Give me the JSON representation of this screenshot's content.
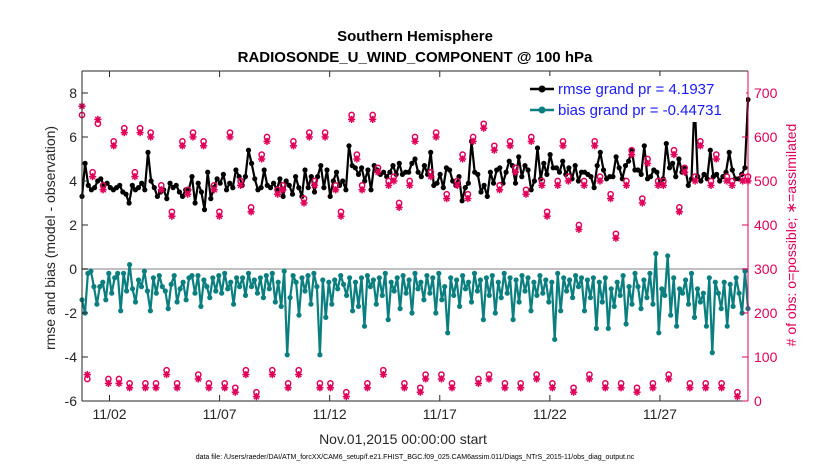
{
  "chart_data": {
    "type": "line",
    "title": "Southern Hemisphere",
    "subtitle": "RADIOSONDE_U_WIND_COMPONENT @ 100 hPa",
    "xlabel": "Nov.01,2015 00:00:00 start",
    "ylabel": "rmse and bias (model - observation)",
    "y2label": "# of obs: o=possible; ∗=assimilated",
    "footnote": "data file: /Users/raeder/DAI/ATM_forcXX/CAM6_setup/f.e21.FHIST_BGC.f09_025.CAM6assim.011/Diags_NTrS_2015-11/obs_diag_output.nc",
    "x_tick_labels": [
      "11/02",
      "11/07",
      "11/12",
      "11/17",
      "11/22",
      "11/27"
    ],
    "x_tick_days": [
      2,
      7,
      12,
      17,
      22,
      27
    ],
    "x_range": [
      0.75,
      31.0
    ],
    "ylim": [
      -6,
      9
    ],
    "y_ticks": [
      -6,
      -4,
      -2,
      0,
      2,
      4,
      6,
      8
    ],
    "y2lim": [
      0,
      750
    ],
    "y2_ticks": [
      0,
      100,
      200,
      300,
      400,
      500,
      600,
      700
    ],
    "zero_line": 0,
    "colors": {
      "rmse": "#000000",
      "bias": "#0b7f7f",
      "obs": "#e0005a",
      "zero": "#c0c0c0",
      "legend_text": "#1a1aff"
    },
    "series": [
      {
        "name": "rmse grand pr = 4.1937",
        "axis": "left",
        "marker": "dot",
        "values": [
          3.3,
          4.8,
          3.8,
          3.6,
          3.7,
          4.0,
          4.1,
          3.8,
          3.9,
          3.7,
          3.6,
          3.7,
          3.8,
          3.5,
          3.4,
          3.0,
          3.8,
          3.6,
          3.7,
          3.9,
          3.6,
          5.3,
          4.0,
          3.7,
          3.3,
          3.5,
          3.6,
          3.2,
          3.9,
          3.7,
          3.8,
          3.5,
          3.3,
          3.6,
          3.6,
          4.2,
          3.0,
          3.9,
          3.5,
          2.7,
          4.4,
          3.2,
          3.7,
          4.1,
          3.9,
          4.3,
          3.6,
          3.9,
          3.7,
          4.5,
          4.2,
          3.8,
          4.2,
          5.4,
          4.8,
          4.1,
          3.6,
          3.7,
          4.5,
          3.8,
          3.7,
          3.9,
          3.6,
          4.1,
          3.3,
          4.0,
          3.8,
          3.4,
          4.2,
          3.7,
          3.3,
          4.5,
          3.7,
          4.2,
          3.5,
          4.2,
          4.7,
          3.7,
          4.5,
          3.3,
          4.0,
          4.4,
          3.8,
          4.0,
          3.6,
          5.6,
          4.7,
          4.6,
          4.3,
          4.6,
          4.0,
          4.5,
          3.6,
          4.7,
          4.5,
          4.3,
          4.4,
          4.2,
          4.4,
          4.7,
          4.3,
          4.8,
          4.3,
          4.4,
          4.4,
          4.8,
          5.0,
          4.4,
          4.2,
          4.7,
          4.3,
          5.3,
          3.8,
          3.9,
          4.3,
          3.7,
          4.6,
          4.5,
          4.0,
          3.8,
          4.2,
          3.1,
          3.7,
          3.9,
          5.8,
          4.4,
          4.3,
          3.5,
          3.8,
          3.3,
          4.4,
          3.9,
          4.5,
          4.6,
          3.9,
          4.4,
          4.9,
          4.7,
          3.9,
          5.1,
          4.2,
          4.7,
          4.5,
          3.6,
          4.0,
          5.5,
          4.1,
          4.8,
          4.3,
          5.2,
          4.6,
          4.6,
          4.4,
          4.9,
          4.3,
          4.6,
          4.1,
          4.7,
          4.0,
          4.4,
          4.4,
          4.3,
          4.2,
          3.7,
          4.7,
          5.3,
          4.5,
          4.1,
          4.2,
          4.2,
          5.1,
          4.6,
          4.1,
          4.7,
          4.9,
          5.4,
          4.5,
          4.5,
          4.3,
          5.6,
          4.1,
          4.2,
          4.5,
          4.4,
          3.9,
          4.1,
          5.7,
          4.6,
          4.8,
          4.2,
          5.0,
          4.4,
          4.6,
          3.8,
          4.1,
          7.7,
          4.2,
          4.0,
          4.3,
          4.1,
          5.4,
          4.2,
          4.3,
          4.0,
          4.2,
          4.4,
          5.3,
          4.5,
          4.1,
          4.1,
          4.3,
          4.6,
          7.7
        ]
      },
      {
        "name": "bias grand pr = -0.44731",
        "axis": "left",
        "marker": "dot",
        "values": [
          -1.4,
          -2.0,
          -0.2,
          -0.1,
          -0.8,
          -1.6,
          -0.8,
          -0.6,
          -1.4,
          -0.2,
          -1.1,
          -0.4,
          -0.2,
          -1.9,
          -0.2,
          -1.0,
          0.2,
          -0.9,
          -1.5,
          -0.5,
          -0.8,
          -0.1,
          -1.0,
          -1.9,
          -0.4,
          -1.1,
          -0.3,
          -0.8,
          -1.0,
          -1.8,
          -0.7,
          -0.3,
          -1.5,
          -0.9,
          -0.6,
          -1.4,
          -0.4,
          -0.3,
          -1.1,
          -0.3,
          -1.7,
          -0.5,
          -0.8,
          -1.3,
          -0.4,
          -1.0,
          -0.3,
          -1.1,
          -0.2,
          -0.9,
          -0.6,
          -1.6,
          -0.4,
          -0.8,
          -0.4,
          -1.2,
          -0.2,
          -0.8,
          -0.5,
          -1.1,
          -0.4,
          -1.3,
          -0.3,
          -0.9,
          -0.2,
          -1.5,
          -0.6,
          -1.7,
          -0.1,
          -3.9,
          -1.3,
          -0.3,
          -0.6,
          -2.1,
          -0.4,
          -1.0,
          -0.3,
          -1.6,
          -0.2,
          -0.8,
          -3.9,
          -0.5,
          -2.2,
          -0.6,
          -1.6,
          -0.5,
          -0.9,
          -0.3,
          -0.7,
          -1.2,
          -0.4,
          -1.9,
          -0.6,
          -1.7,
          -0.4,
          -2.6,
          -0.3,
          -0.8,
          -0.5,
          -1.6,
          -0.4,
          -1.2,
          -0.2,
          -2.3,
          -0.6,
          -1.0,
          -0.4,
          -1.8,
          -0.3,
          -1.1,
          -0.5,
          -2.0,
          -0.2,
          -0.9,
          -0.6,
          -1.4,
          -0.3,
          -1.1,
          -0.4,
          -2.0,
          -0.2,
          -1.4,
          -0.8,
          -2.9,
          -0.4,
          -1.2,
          -0.5,
          -1.7,
          -0.3,
          -0.9,
          -0.6,
          -1.5,
          -0.2,
          -1.0,
          -0.5,
          -2.3,
          -0.4,
          -1.2,
          -0.3,
          -2.0,
          -0.6,
          -1.3,
          -0.2,
          -1.1,
          -0.4,
          -2.3,
          -0.5,
          -1.5,
          -0.3,
          -1.0,
          -0.4,
          -1.9,
          -0.6,
          -1.2,
          -0.3,
          -1.1,
          -0.5,
          -1.5,
          -0.6,
          -3.2,
          -0.2,
          -1.9,
          -0.4,
          -1.0,
          -0.5,
          -1.3,
          -0.3,
          -0.8,
          -0.4,
          -1.9,
          -0.5,
          -1.3,
          -0.4,
          -2.7,
          -0.6,
          -1.5,
          -0.4,
          -2.7,
          -0.9,
          -1.7,
          -0.6,
          -1.2,
          -0.3,
          -2.5,
          -0.8,
          -1.6,
          -0.2,
          -0.8,
          -1.8,
          -0.5,
          -1.3,
          -0.2,
          -1.6,
          0.7,
          -2.9,
          -0.9,
          -1.2,
          0.6,
          -2.1,
          -0.4,
          -2.6,
          -0.9,
          -1.1,
          -0.5,
          -1.6,
          -0.2,
          -2.2,
          -0.9,
          -1.5,
          -1.1,
          -2.6,
          -0.4,
          -3.8,
          -0.6,
          -1.1,
          -1.8,
          -0.6,
          -2.6,
          -0.7,
          -1.7,
          -0.4,
          -1.1,
          -2.0,
          -0.1,
          -1.8
        ]
      }
    ],
    "obs_counts": {
      "axis": "right",
      "possible_marker": "o",
      "assimilated_marker": "*",
      "possible": [
        650,
        50,
        520,
        630,
        490,
        50,
        590,
        50,
        620,
        40,
        520,
        620,
        40,
        610,
        40,
        490,
        70,
        430,
        40,
        590,
        480,
        610,
        60,
        590,
        40,
        490,
        430,
        40,
        610,
        30,
        500,
        70,
        440,
        20,
        560,
        600,
        70,
        480,
        490,
        40,
        590,
        70,
        460,
        610,
        500,
        40,
        610,
        40,
        490,
        430,
        20,
        650,
        560,
        490,
        40,
        650,
        530,
        70,
        500,
        510,
        450,
        40,
        500,
        600,
        30,
        60,
        520,
        610,
        60,
        470,
        40,
        500,
        560,
        470,
        600,
        50,
        630,
        60,
        580,
        490,
        40,
        590,
        530,
        40,
        480,
        600,
        60,
        500,
        430,
        40,
        500,
        590,
        510,
        30,
        400,
        500,
        60,
        590,
        510,
        40,
        470,
        380,
        40,
        500,
        570,
        30,
        460,
        550,
        40,
        500,
        500,
        60,
        570,
        440,
        530,
        40,
        510,
        590,
        40,
        500,
        560,
        40,
        510,
        500,
        20,
        510,
        510
      ],
      "assimilated": [
        670,
        60,
        510,
        640,
        480,
        40,
        580,
        40,
        610,
        30,
        510,
        610,
        30,
        600,
        30,
        480,
        60,
        420,
        30,
        580,
        470,
        600,
        50,
        580,
        30,
        480,
        420,
        30,
        600,
        20,
        490,
        60,
        430,
        10,
        550,
        590,
        60,
        470,
        480,
        30,
        580,
        60,
        450,
        600,
        490,
        30,
        600,
        30,
        480,
        420,
        10,
        640,
        550,
        480,
        30,
        640,
        520,
        60,
        490,
        500,
        440,
        30,
        490,
        590,
        20,
        50,
        510,
        600,
        50,
        460,
        30,
        490,
        550,
        460,
        590,
        40,
        620,
        50,
        570,
        480,
        30,
        580,
        520,
        30,
        470,
        590,
        50,
        490,
        420,
        30,
        490,
        580,
        500,
        20,
        390,
        490,
        50,
        580,
        500,
        30,
        460,
        370,
        30,
        490,
        560,
        20,
        450,
        540,
        30,
        490,
        490,
        50,
        560,
        430,
        520,
        30,
        500,
        580,
        30,
        490,
        550,
        30,
        500,
        490,
        10,
        500,
        500
      ]
    },
    "legend": [
      "rmse grand pr = 4.1937",
      "bias grand pr = -0.44731"
    ],
    "legend_position": "top-right"
  }
}
